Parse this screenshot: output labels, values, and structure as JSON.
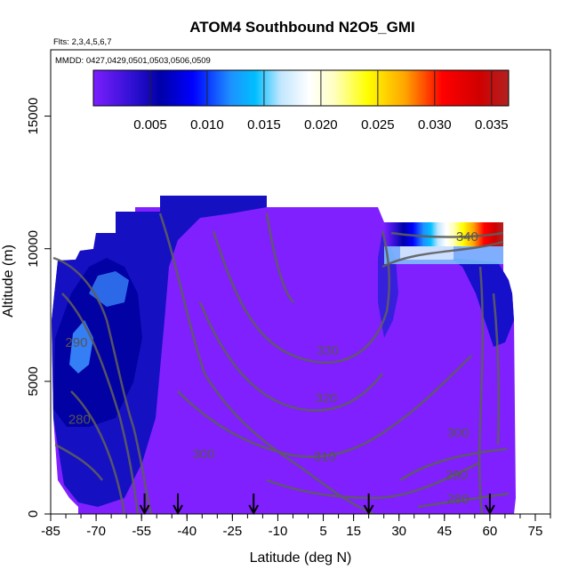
{
  "chart_data": {
    "type": "heatmap",
    "title": "ATOM4 Southbound N2O5_GMI",
    "subtitle_flights": "Flts: 2,3,4,5,6,7",
    "subtitle_dates": "MMDD: 0427,0429,0501,0503,0506,0509",
    "xlabel": "Latitude (deg N)",
    "ylabel": "Altitude (m)",
    "xlim": [
      -85,
      80
    ],
    "ylim": [
      0,
      17500
    ],
    "x_ticks": [
      -85,
      -70,
      -55,
      -40,
      -25,
      -10,
      5,
      15,
      30,
      45,
      60,
      75
    ],
    "x_minor_step": 5,
    "y_ticks": [
      0,
      5000,
      10000,
      15000
    ],
    "colorbar": {
      "min": 0.0,
      "max": 0.0365,
      "ticks": [
        0.005,
        0.01,
        0.015,
        0.02,
        0.025,
        0.03,
        0.035
      ],
      "tick_labels": [
        "0.005",
        "0.010",
        "0.015",
        "0.020",
        "0.025",
        "0.030",
        "0.035"
      ],
      "colors": [
        "#7b1fff",
        "#0000a8",
        "#0000ff",
        "#1e90ff",
        "#00bfff",
        "#ffffff",
        "#ffffc8",
        "#ffff00",
        "#ffa500",
        "#ff0000",
        "#d00000",
        "#b22222"
      ]
    },
    "contour_levels": [
      {
        "label": "280",
        "lat": -75.5,
        "alt": 3400
      },
      {
        "label": "290",
        "lat": -76.5,
        "alt": 6300
      },
      {
        "label": "300",
        "lat": -34.5,
        "alt": 2100
      },
      {
        "label": "310",
        "lat": 5.5,
        "alt": 2000
      },
      {
        "label": "320",
        "lat": 6.0,
        "alt": 4200
      },
      {
        "label": "330",
        "lat": 6.5,
        "alt": 6000
      },
      {
        "label": "340",
        "lat": 52.5,
        "alt": 10300
      },
      {
        "label": "300",
        "lat": 49.5,
        "alt": 2900
      },
      {
        "label": "290",
        "lat": 49.0,
        "alt": 1300
      },
      {
        "label": "280",
        "lat": 49.5,
        "alt": 400
      }
    ],
    "flight_markers_lat": [
      -54,
      -43,
      -18,
      20,
      60
    ]
  }
}
